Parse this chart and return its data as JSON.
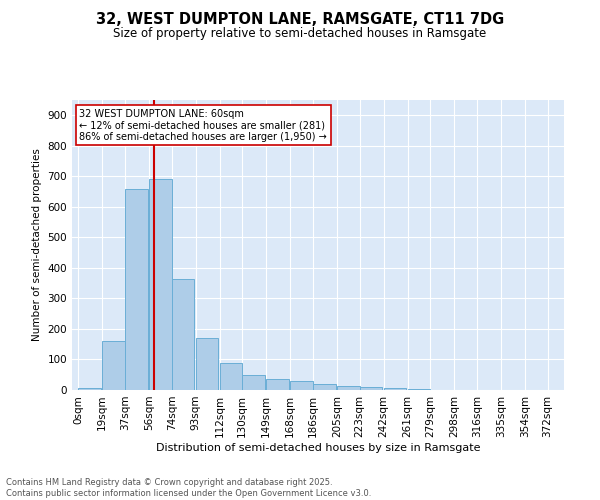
{
  "title1": "32, WEST DUMPTON LANE, RAMSGATE, CT11 7DG",
  "title2": "Size of property relative to semi-detached houses in Ramsgate",
  "xlabel": "Distribution of semi-detached houses by size in Ramsgate",
  "ylabel": "Number of semi-detached properties",
  "bar_values": [
    7,
    160,
    660,
    690,
    365,
    170,
    87,
    48,
    37,
    30,
    20,
    14,
    10,
    6,
    4
  ],
  "bin_left_edges": [
    0,
    19,
    37,
    56,
    74,
    93,
    112,
    130,
    149,
    168,
    186,
    205,
    223,
    242,
    261
  ],
  "bin_width": 18,
  "x_tick_labels": [
    "0sqm",
    "19sqm",
    "37sqm",
    "56sqm",
    "74sqm",
    "93sqm",
    "112sqm",
    "130sqm",
    "149sqm",
    "168sqm",
    "186sqm",
    "205sqm",
    "223sqm",
    "242sqm",
    "261sqm",
    "279sqm",
    "298sqm",
    "316sqm",
    "335sqm",
    "354sqm",
    "372sqm"
  ],
  "x_tick_positions": [
    0,
    19,
    37,
    56,
    74,
    93,
    112,
    130,
    149,
    168,
    186,
    205,
    223,
    242,
    261,
    279,
    298,
    316,
    335,
    354,
    372
  ],
  "bar_color": "#aecde8",
  "bar_edge_color": "#6aaed6",
  "vline_x": 60,
  "vline_color": "#cc0000",
  "annotation_title": "32 WEST DUMPTON LANE: 60sqm",
  "annotation_line1": "← 12% of semi-detached houses are smaller (281)",
  "annotation_line2": "86% of semi-detached houses are larger (1,950) →",
  "annotation_box_color": "#cc0000",
  "ylim": [
    0,
    950
  ],
  "yticks": [
    0,
    100,
    200,
    300,
    400,
    500,
    600,
    700,
    800,
    900
  ],
  "xlim": [
    -5,
    385
  ],
  "bg_color": "#dce9f8",
  "grid_color": "#ffffff",
  "footer1": "Contains HM Land Registry data © Crown copyright and database right 2025.",
  "footer2": "Contains public sector information licensed under the Open Government Licence v3.0."
}
